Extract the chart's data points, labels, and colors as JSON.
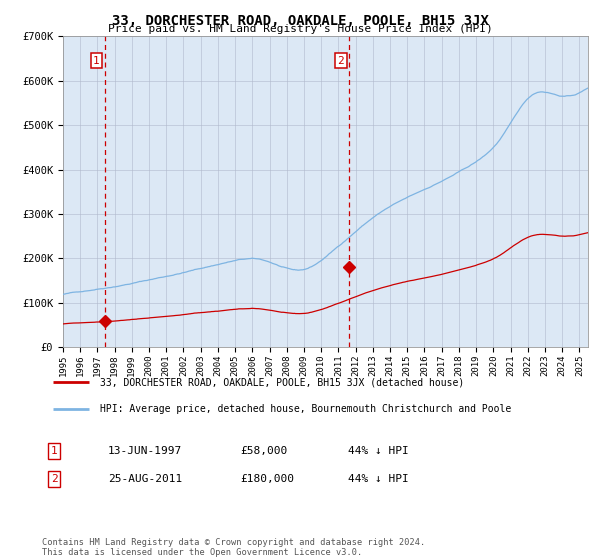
{
  "title": "33, DORCHESTER ROAD, OAKDALE, POOLE, BH15 3JX",
  "subtitle": "Price paid vs. HM Land Registry's House Price Index (HPI)",
  "legend_line1": "33, DORCHESTER ROAD, OAKDALE, POOLE, BH15 3JX (detached house)",
  "legend_line2": "HPI: Average price, detached house, Bournemouth Christchurch and Poole",
  "footnote": "Contains HM Land Registry data © Crown copyright and database right 2024.\nThis data is licensed under the Open Government Licence v3.0.",
  "sale1_label": "1",
  "sale1_date": "13-JUN-1997",
  "sale1_price": "£58,000",
  "sale1_hpi": "44% ↓ HPI",
  "sale1_year": 1997.45,
  "sale1_value": 58000,
  "sale2_label": "2",
  "sale2_date": "25-AUG-2011",
  "sale2_price": "£180,000",
  "sale2_hpi": "44% ↓ HPI",
  "sale2_year": 2011.64,
  "sale2_value": 180000,
  "hpi_color": "#7eb4e2",
  "price_color": "#cc0000",
  "plot_bg": "#dce8f5",
  "ylim": [
    0,
    700000
  ],
  "xlim_start": 1995,
  "xlim_end": 2025.5,
  "yticks": [
    0,
    100000,
    200000,
    300000,
    400000,
    500000,
    600000,
    700000
  ],
  "ytick_labels": [
    "£0",
    "£100K",
    "£200K",
    "£300K",
    "£400K",
    "£500K",
    "£600K",
    "£700K"
  ]
}
